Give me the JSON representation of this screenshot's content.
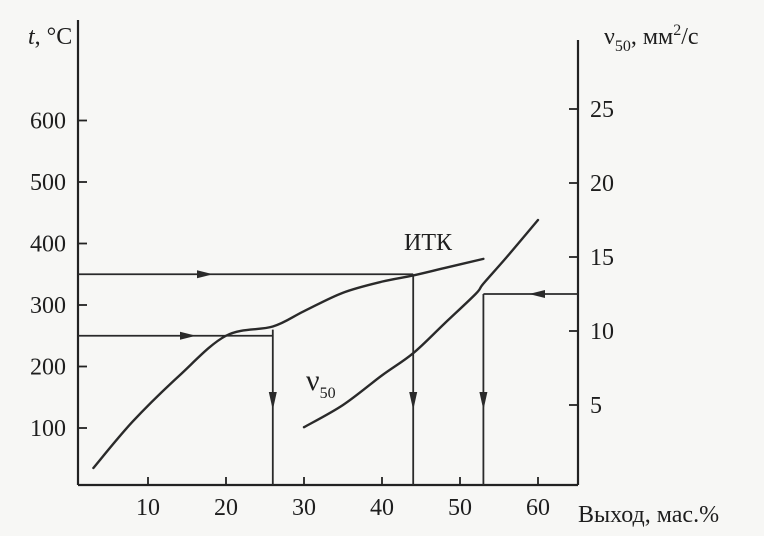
{
  "chart_data": {
    "type": "line",
    "title": "",
    "xlabel": "Выход, мас.%",
    "ylabel_left": {
      "symbol": "t",
      "unit": ", °C"
    },
    "ylabel_right": {
      "symbol": "ν",
      "subscript": "50",
      "unit": ", мм",
      "unit_sup": "2",
      "unit_tail": "/с"
    },
    "xlim": [
      0,
      60
    ],
    "ylim_left": [
      0,
      700
    ],
    "ylim_right": [
      0,
      28
    ],
    "x_ticks": [
      10,
      20,
      30,
      40,
      50,
      60
    ],
    "y_left_ticks": [
      100,
      200,
      300,
      400,
      500,
      600
    ],
    "y_right_ticks": [
      5,
      10,
      15,
      20,
      25
    ],
    "grid": false,
    "series": [
      {
        "name": "ИТК",
        "axis": "left",
        "x": [
          3,
          8,
          14,
          20,
          26,
          30,
          35,
          40,
          44,
          48,
          53
        ],
        "y": [
          35,
          110,
          185,
          250,
          265,
          290,
          320,
          338,
          348,
          360,
          375
        ]
      },
      {
        "name": "ν50",
        "name_main": "ν",
        "name_sub": "50",
        "axis": "right",
        "x": [
          30,
          35,
          40,
          44,
          48,
          52,
          53,
          56,
          60
        ],
        "y": [
          3.5,
          5,
          7,
          8.5,
          10.5,
          12.5,
          13.2,
          15,
          17.5
        ]
      }
    ],
    "annotations": {
      "horizontal_guides": [
        {
          "from": "left",
          "y": 350,
          "to_x": 44,
          "to_y": 350
        },
        {
          "from": "left",
          "y": 250,
          "to_x": 26,
          "to_y": 260
        },
        {
          "from": "right",
          "y_right": 12.5,
          "to_x": 53,
          "to_y_right": 12.5
        }
      ],
      "vertical_guides": [
        26,
        44,
        53
      ]
    },
    "curve_label_positions": {
      "ИТК": "top-right of curve",
      "ν50": "below curve start"
    }
  }
}
